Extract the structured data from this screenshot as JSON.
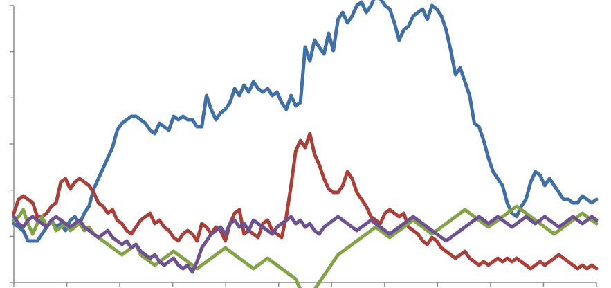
{
  "chart_data": {
    "type": "line",
    "title": "",
    "xlabel": "",
    "ylabel": "",
    "grid": false,
    "legend": "none",
    "y_tick_count": 7,
    "x_tick_count": 12,
    "series": [
      {
        "color": "#3f6fa5",
        "x": [
          1,
          2,
          3,
          4,
          5,
          6,
          7,
          8,
          9,
          10,
          11,
          12,
          13,
          14,
          15,
          16,
          17,
          18,
          19,
          20,
          21,
          22,
          23,
          24,
          25,
          26,
          27,
          28,
          29,
          30,
          31,
          32,
          33,
          34,
          35,
          36,
          37,
          38,
          39,
          40,
          41,
          42,
          43,
          44,
          45,
          46,
          47,
          48,
          49,
          50,
          51,
          52,
          53,
          54,
          55,
          56,
          57,
          58,
          59,
          60,
          61,
          62,
          63,
          64,
          65,
          66,
          67,
          68,
          69,
          70,
          71,
          72,
          73,
          74,
          75,
          76,
          77,
          78,
          79,
          80,
          81,
          82,
          83,
          84,
          85,
          86,
          87,
          88,
          89,
          90,
          91,
          92,
          93,
          94,
          95,
          96,
          97,
          98,
          99,
          100,
          101,
          102,
          103,
          104,
          105,
          106,
          107,
          108,
          109,
          110,
          111,
          112,
          113,
          114,
          115,
          116,
          117,
          118,
          119,
          120,
          121,
          122,
          123,
          124,
          125
        ],
        "y": [
          -3,
          -4,
          -5,
          -8,
          -8,
          -8,
          -6,
          -4,
          -2,
          -4,
          -3,
          -5,
          -2,
          -1,
          -3,
          0,
          2,
          7,
          10,
          13,
          16,
          19,
          24,
          26,
          27,
          28,
          28,
          27,
          26,
          24,
          23,
          26,
          25,
          24,
          28,
          27,
          28,
          27,
          27,
          25,
          25,
          34,
          30,
          27,
          29,
          30,
          32,
          36,
          34,
          37,
          35,
          38,
          36,
          35,
          36,
          34,
          35,
          32,
          30,
          34,
          31,
          32,
          48,
          44,
          50,
          48,
          46,
          52,
          47,
          56,
          58,
          55,
          57,
          60,
          61,
          58,
          60,
          63,
          62,
          60,
          59,
          55,
          50,
          53,
          54,
          57,
          58,
          59,
          56,
          60,
          59,
          57,
          53,
          47,
          40,
          42,
          38,
          34,
          26,
          25,
          21,
          16,
          12,
          10,
          8,
          3,
          0,
          -1,
          2,
          4,
          9,
          12,
          11,
          8,
          10,
          8,
          6,
          4,
          4,
          3,
          3,
          5,
          4,
          3,
          4
        ]
      },
      {
        "color": "#aa3f3a",
        "x": [
          1,
          2,
          3,
          4,
          5,
          6,
          7,
          8,
          9,
          10,
          11,
          12,
          13,
          14,
          15,
          16,
          17,
          18,
          19,
          20,
          21,
          22,
          23,
          24,
          25,
          26,
          27,
          28,
          29,
          30,
          31,
          32,
          33,
          34,
          35,
          36,
          37,
          38,
          39,
          40,
          41,
          42,
          43,
          44,
          45,
          46,
          47,
          48,
          49,
          50,
          51,
          52,
          53,
          54,
          55,
          56,
          57,
          58,
          59,
          60,
          61,
          62,
          63,
          64,
          65,
          66,
          67,
          68,
          69,
          70,
          71,
          72,
          73,
          74,
          75,
          76,
          77,
          78,
          79,
          80,
          81,
          82,
          83,
          84,
          85,
          86,
          87,
          88,
          89,
          90,
          91,
          92,
          93,
          94,
          95,
          96,
          97,
          98,
          99,
          100,
          101,
          102,
          103,
          104,
          105,
          106,
          107,
          108,
          109,
          110,
          111,
          112,
          113,
          114,
          115,
          116,
          117,
          118,
          119,
          120,
          121,
          122,
          123,
          124,
          125
        ],
        "y": [
          0,
          4,
          5,
          4,
          3,
          -1,
          -1,
          0,
          2,
          3,
          9,
          10,
          7,
          9,
          10,
          9,
          8,
          6,
          3,
          2,
          0,
          1,
          -2,
          -3,
          -5,
          -6,
          -4,
          -2,
          -1,
          0,
          -3,
          -2,
          -4,
          -5,
          -7,
          -8,
          -6,
          -5,
          -6,
          -8,
          -3,
          -4,
          -6,
          -4,
          -5,
          -8,
          -3,
          0,
          1,
          -6,
          -5,
          -6,
          -7,
          -3,
          -2,
          -5,
          -6,
          -7,
          -1,
          8,
          18,
          21,
          19,
          23,
          17,
          14,
          10,
          7,
          6,
          6,
          8,
          12,
          10,
          6,
          4,
          2,
          -1,
          -2,
          -3,
          0,
          1,
          0,
          -1,
          0,
          -4,
          -5,
          -6,
          -8,
          -9,
          -7,
          -8,
          -10,
          -11,
          -12,
          -13,
          -12,
          -11,
          -13,
          -14,
          -15,
          -14,
          -15,
          -14,
          -13,
          -14,
          -13,
          -14,
          -13,
          -14,
          -15,
          -16,
          -15,
          -14,
          -15,
          -14,
          -13,
          -12,
          -13,
          -14,
          -15,
          -16,
          -15,
          -16,
          -15,
          -16
        ]
      },
      {
        "color": "#84a348",
        "x": [
          1,
          2,
          3,
          4,
          5,
          6,
          7,
          8,
          9,
          10,
          11,
          12,
          13,
          14,
          15,
          16,
          17,
          18,
          19,
          20,
          21,
          22,
          23,
          24,
          25,
          26,
          27,
          28,
          29,
          30,
          31,
          32,
          33,
          34,
          35,
          36,
          37,
          38,
          39,
          40,
          41,
          42,
          43,
          44,
          45,
          46,
          47,
          48,
          49,
          50,
          51,
          52,
          53,
          54,
          55,
          56,
          57,
          58,
          59,
          60,
          61,
          62,
          63,
          64,
          65,
          66,
          67,
          68,
          69,
          70,
          71,
          72,
          73,
          74,
          75,
          76,
          77,
          78,
          79,
          80,
          81,
          82,
          83,
          84,
          85,
          86,
          87,
          88,
          89,
          90,
          91,
          92,
          93,
          94,
          95,
          96,
          97,
          98,
          99,
          100,
          101,
          102,
          103,
          104,
          105,
          106,
          107,
          108,
          109,
          110,
          111,
          112,
          113,
          114,
          115,
          116,
          117,
          118,
          119,
          120,
          121,
          122,
          123,
          124,
          125
        ],
        "y": [
          -2,
          -1,
          1,
          -3,
          -6,
          -3,
          -1,
          -4,
          -2,
          -5,
          -4,
          -3,
          -5,
          -4,
          -3,
          -5,
          -4,
          -6,
          -7,
          -8,
          -9,
          -10,
          -11,
          -12,
          -11,
          -10,
          -9,
          -12,
          -13,
          -14,
          -15,
          -14,
          -13,
          -12,
          -11,
          -12,
          -13,
          -14,
          -15,
          -16,
          -15,
          -14,
          -13,
          -12,
          -11,
          -10,
          -11,
          -12,
          -13,
          -14,
          -15,
          -16,
          -15,
          -14,
          -13,
          -14,
          -15,
          -16,
          -17,
          -18,
          -19,
          -22,
          -24,
          -23,
          -22,
          -20,
          -18,
          -16,
          -14,
          -12,
          -11,
          -10,
          -9,
          -8,
          -7,
          -6,
          -5,
          -4,
          -5,
          -6,
          -7,
          -6,
          -5,
          -4,
          -3,
          -2,
          -3,
          -4,
          -5,
          -6,
          -5,
          -4,
          -3,
          -2,
          -1,
          0,
          1,
          0,
          -1,
          -2,
          -3,
          -4,
          -3,
          -2,
          -1,
          0,
          1,
          2,
          1,
          0,
          -1,
          -2,
          -3,
          -4,
          -5,
          -6,
          -5,
          -4,
          -3,
          -2,
          -1,
          0,
          -1,
          -2,
          -3
        ]
      },
      {
        "color": "#6d5190",
        "x": [
          1,
          2,
          3,
          4,
          5,
          6,
          7,
          8,
          9,
          10,
          11,
          12,
          13,
          14,
          15,
          16,
          17,
          18,
          19,
          20,
          21,
          22,
          23,
          24,
          25,
          26,
          27,
          28,
          29,
          30,
          31,
          32,
          33,
          34,
          35,
          36,
          37,
          38,
          39,
          40,
          41,
          42,
          43,
          44,
          45,
          46,
          47,
          48,
          49,
          50,
          51,
          52,
          53,
          54,
          55,
          56,
          57,
          58,
          59,
          60,
          61,
          62,
          63,
          64,
          65,
          66,
          67,
          68,
          69,
          70,
          71,
          72,
          73,
          74,
          75,
          76,
          77,
          78,
          79,
          80,
          81,
          82,
          83,
          84,
          85,
          86,
          87,
          88,
          89,
          90,
          91,
          92,
          93,
          94,
          95,
          96,
          97,
          98,
          99,
          100,
          101,
          102,
          103,
          104,
          105,
          106,
          107,
          108,
          109,
          110,
          111,
          112,
          113,
          114,
          115,
          116,
          117,
          118,
          119,
          120,
          121,
          122,
          123,
          124,
          125
        ],
        "y": [
          -1,
          -3,
          -4,
          -2,
          -1,
          -2,
          -3,
          -4,
          -2,
          -1,
          -2,
          -3,
          -4,
          -3,
          -2,
          -4,
          -5,
          -6,
          -7,
          -6,
          -5,
          -7,
          -8,
          -9,
          -8,
          -10,
          -9,
          -11,
          -12,
          -13,
          -12,
          -14,
          -15,
          -14,
          -13,
          -15,
          -16,
          -15,
          -17,
          -14,
          -10,
          -8,
          -6,
          -5,
          -4,
          -6,
          -3,
          -2,
          -4,
          -3,
          -5,
          -2,
          -3,
          -4,
          -5,
          -6,
          -4,
          -3,
          -2,
          -1,
          -3,
          -2,
          -4,
          -3,
          -5,
          -6,
          -4,
          -3,
          -2,
          -1,
          -2,
          -3,
          -4,
          -5,
          -4,
          -3,
          -2,
          -3,
          -4,
          -5,
          -6,
          -5,
          -4,
          -3,
          -2,
          -1,
          -2,
          -3,
          -4,
          -5,
          -6,
          -7,
          -8,
          -7,
          -6,
          -5,
          -4,
          -3,
          -2,
          -1,
          -2,
          -3,
          -2,
          -1,
          -2,
          -3,
          -4,
          -3,
          -2,
          -1,
          -2,
          -3,
          -2,
          -1,
          -2,
          -3,
          -4,
          -3,
          -2,
          -1,
          -2,
          -3,
          -2,
          -1,
          -2
        ]
      }
    ],
    "xlim": [
      1,
      125
    ],
    "ylim": [
      -20,
      60
    ]
  }
}
